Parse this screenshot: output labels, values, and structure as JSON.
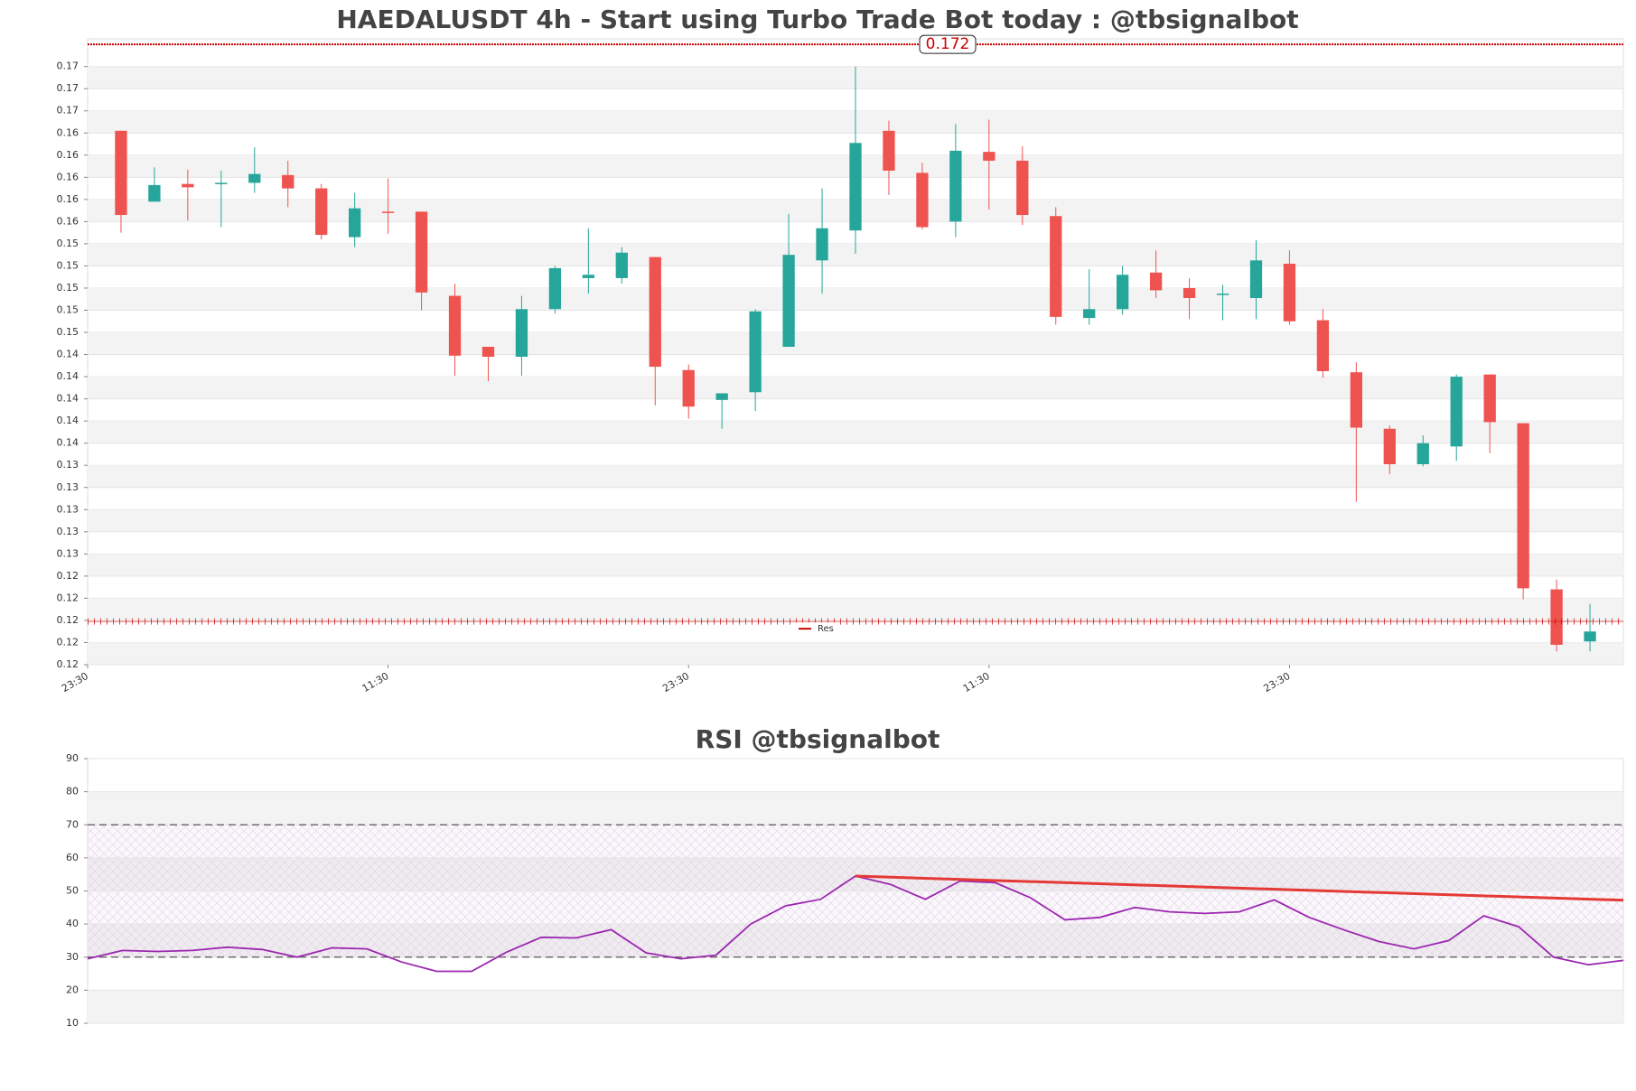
{
  "chart_data": [
    {
      "type": "candlestick",
      "title": "HAEDALUSDT 4h - Start using Turbo Trade Bot today : @tbsignalbot",
      "up_color": "#26a69a",
      "down_color": "#ef5350",
      "xlim": [
        -1,
        45
      ],
      "xticks": [
        {
          "value": -1,
          "label": "23:30"
        },
        {
          "value": 8,
          "label": "11:30"
        },
        {
          "value": 17,
          "label": "23:30"
        },
        {
          "value": 26,
          "label": "11:30"
        },
        {
          "value": 35,
          "label": "23:30"
        }
      ],
      "ylim": [
        0.116,
        0.1725
      ],
      "yticks": [
        0.17,
        {
          "value": 0.168,
          "label": "0.17"
        },
        {
          "value": 0.166,
          "label": "0.17"
        },
        {
          "value": 0.164,
          "label": "0.16"
        },
        {
          "value": 0.162,
          "label": "0.16"
        },
        0.16,
        {
          "value": 0.158,
          "label": "0.16"
        },
        {
          "value": 0.156,
          "label": "0.16"
        },
        {
          "value": 0.154,
          "label": "0.15"
        },
        {
          "value": 0.152,
          "label": "0.15"
        },
        0.15,
        {
          "value": 0.148,
          "label": "0.15"
        },
        {
          "value": 0.146,
          "label": "0.15"
        },
        {
          "value": 0.144,
          "label": "0.14"
        },
        {
          "value": 0.142,
          "label": "0.14"
        },
        0.14,
        {
          "value": 0.138,
          "label": "0.14"
        },
        {
          "value": 0.136,
          "label": "0.14"
        },
        {
          "value": 0.134,
          "label": "0.13"
        },
        {
          "value": 0.132,
          "label": "0.13"
        },
        0.13,
        {
          "value": 0.128,
          "label": "0.13"
        },
        {
          "value": 0.126,
          "label": "0.13"
        },
        {
          "value": 0.124,
          "label": "0.12"
        },
        {
          "value": 0.122,
          "label": "0.12"
        },
        0.12,
        {
          "value": 0.118,
          "label": "0.12"
        },
        {
          "value": 0.116,
          "label": "0.12"
        }
      ],
      "open": [
        0.1642,
        0.1578,
        0.1594,
        0.1594,
        0.1595,
        0.1602,
        0.159,
        0.1546,
        0.1569,
        0.1569,
        0.1493,
        0.1447,
        0.1438,
        0.1481,
        0.1509,
        0.1509,
        0.1528,
        0.1426,
        0.1399,
        0.1406,
        0.1447,
        0.1525,
        0.1552,
        0.1642,
        0.1604,
        0.156,
        0.1623,
        0.1615,
        0.1565,
        0.1473,
        0.1481,
        0.1514,
        0.15,
        0.1494,
        0.1491,
        0.1522,
        0.1471,
        0.1424,
        0.1373,
        0.1341,
        0.1357,
        0.1422,
        0.1378,
        0.1228,
        0.1181
      ],
      "high": [
        0.1642,
        0.1609,
        0.1607,
        0.1606,
        0.1627,
        0.1615,
        0.1594,
        0.1586,
        0.1599,
        0.1569,
        0.1504,
        0.1447,
        0.1493,
        0.152,
        0.1554,
        0.1537,
        0.1528,
        0.1431,
        0.1405,
        0.1481,
        0.1567,
        0.159,
        0.17,
        0.1651,
        0.1613,
        0.1648,
        0.1652,
        0.1628,
        0.1573,
        0.1517,
        0.152,
        0.1534,
        0.1509,
        0.1503,
        0.1543,
        0.1534,
        0.1481,
        0.1433,
        0.1376,
        0.1367,
        0.1422,
        0.1422,
        0.1378,
        0.1237,
        0.1215
      ],
      "low": [
        0.155,
        0.1578,
        0.1561,
        0.1555,
        0.1586,
        0.1573,
        0.1544,
        0.1537,
        0.1549,
        0.148,
        0.1421,
        0.1416,
        0.1421,
        0.1477,
        0.1495,
        0.1504,
        0.1394,
        0.1382,
        0.1373,
        0.1389,
        0.1447,
        0.1495,
        0.1531,
        0.1584,
        0.1553,
        0.1546,
        0.1571,
        0.1557,
        0.1467,
        0.1467,
        0.1476,
        0.1491,
        0.1472,
        0.1471,
        0.1472,
        0.1467,
        0.1419,
        0.1307,
        0.1332,
        0.1339,
        0.1344,
        0.1351,
        0.1219,
        0.1172,
        0.1172
      ],
      "close": [
        0.1566,
        0.1593,
        0.1591,
        0.1595,
        0.1603,
        0.159,
        0.1548,
        0.1572,
        0.1568,
        0.1496,
        0.1439,
        0.1438,
        0.1481,
        0.1518,
        0.1512,
        0.1532,
        0.1429,
        0.1393,
        0.1405,
        0.1479,
        0.153,
        0.1554,
        0.1631,
        0.1606,
        0.1555,
        0.1624,
        0.1615,
        0.1566,
        0.1474,
        0.1481,
        0.1512,
        0.1498,
        0.1491,
        0.1495,
        0.1525,
        0.147,
        0.1425,
        0.1374,
        0.1341,
        0.136,
        0.142,
        0.1379,
        0.1229,
        0.1178,
        0.119
      ],
      "resistance": {
        "value": 0.172,
        "color": "#cc0000"
      },
      "support": {
        "name": "Res",
        "value": 0.1199,
        "color": "#cc0000"
      }
    },
    {
      "type": "line",
      "title": "RSI @tbsignalbot",
      "color": "#9c27b0",
      "ylim": [
        10,
        90
      ],
      "yticks": [
        10,
        20,
        30,
        40,
        50,
        60,
        70,
        80,
        90
      ],
      "levels": [
        70,
        30
      ],
      "values": [
        29.5,
        32,
        31.7,
        32,
        33,
        32.3,
        30,
        32.8,
        32.5,
        28.5,
        25.7,
        25.7,
        31.5,
        36,
        35.8,
        38.3,
        31.3,
        29.5,
        30.6,
        40,
        45.5,
        47.5,
        54.5,
        52,
        47.5,
        53,
        52.5,
        48,
        41.3,
        42,
        45,
        43.7,
        43.2,
        43.7,
        47.3,
        42,
        38.2,
        34.7,
        32.5,
        35,
        42.5,
        39.2,
        30,
        27.7,
        29
      ],
      "trend_line": {
        "x": [
          22,
          44
        ],
        "values": [
          54.5,
          47.2
        ],
        "color": "#e53935"
      }
    }
  ]
}
